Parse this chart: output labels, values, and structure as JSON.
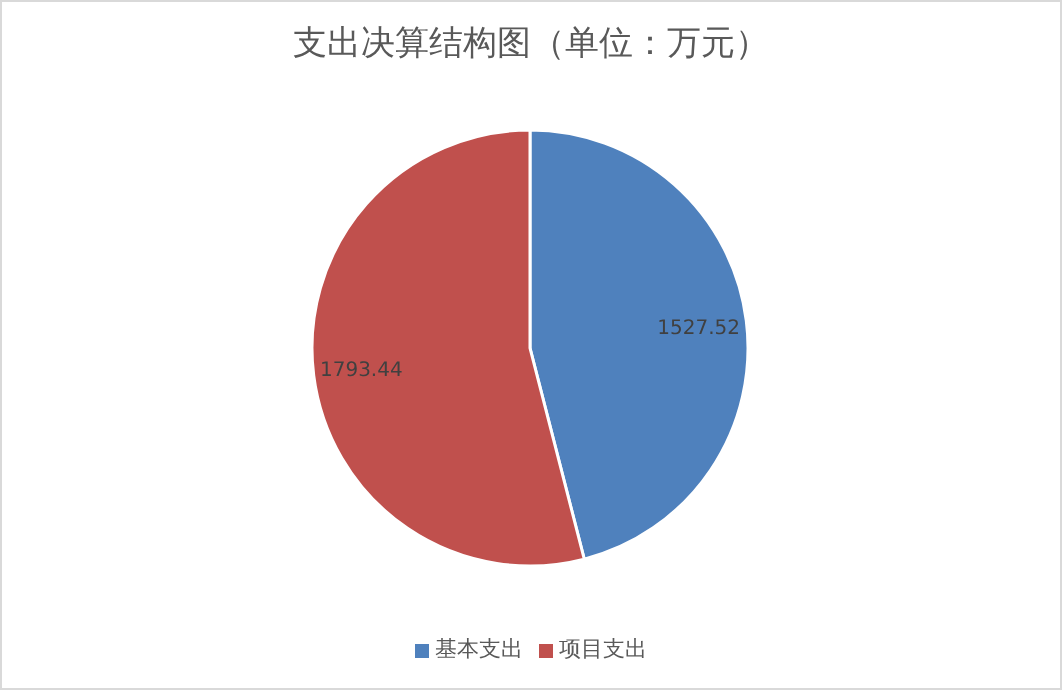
{
  "chart_data": {
    "type": "pie",
    "title": "支出决算结构图（单位：万元）",
    "categories": [
      "基本支出",
      "项目支出"
    ],
    "values": [
      1527.52,
      1793.44
    ],
    "colors": [
      "#4f81bd",
      "#c0504d"
    ],
    "data_labels": true,
    "legend": "bottom"
  }
}
